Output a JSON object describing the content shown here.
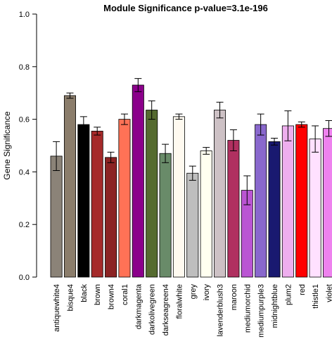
{
  "chart_data": {
    "type": "bar",
    "title": "Module Significance p-value=3.1e-196",
    "xlabel": "",
    "ylabel": "Gene Significance",
    "ylim": [
      0,
      1
    ],
    "yticks": [
      "0.0",
      "0.2",
      "0.4",
      "0.6",
      "0.8",
      "1.0"
    ],
    "grid": false,
    "legend": "none",
    "categories": [
      "antiquewhite4",
      "bisque4",
      "black",
      "brown",
      "brown4",
      "coral1",
      "darkmagenta",
      "darkolivegreen",
      "darkseagreen4",
      "floralwhite",
      "grey",
      "ivory",
      "lavenderblush3",
      "maroon",
      "mediumorchid",
      "mediumpurple3",
      "midnightblue",
      "plum2",
      "red",
      "thistle1",
      "violet"
    ],
    "values": [
      0.46,
      0.69,
      0.58,
      0.555,
      0.455,
      0.6,
      0.73,
      0.635,
      0.47,
      0.61,
      0.395,
      0.48,
      0.635,
      0.52,
      0.33,
      0.58,
      0.515,
      0.575,
      0.58,
      0.525,
      0.565
    ],
    "errors": [
      0.055,
      0.01,
      0.03,
      0.015,
      0.02,
      0.02,
      0.025,
      0.035,
      0.035,
      0.01,
      0.027,
      0.013,
      0.03,
      0.04,
      0.055,
      0.04,
      0.013,
      0.057,
      0.01,
      0.05,
      0.03
    ],
    "colors": [
      "#8B8378",
      "#8B7D6B",
      "#000000",
      "#A52A2A",
      "#8B2323",
      "#FF7256",
      "#8B008B",
      "#556B2F",
      "#698B69",
      "#FFFAF0",
      "#BEBEBE",
      "#FFFFF0",
      "#CDC1C5",
      "#B03060",
      "#BA55D3",
      "#8968CD",
      "#191970",
      "#EEAEEE",
      "#FF0000",
      "#FFE1FF",
      "#EE82EE"
    ]
  }
}
